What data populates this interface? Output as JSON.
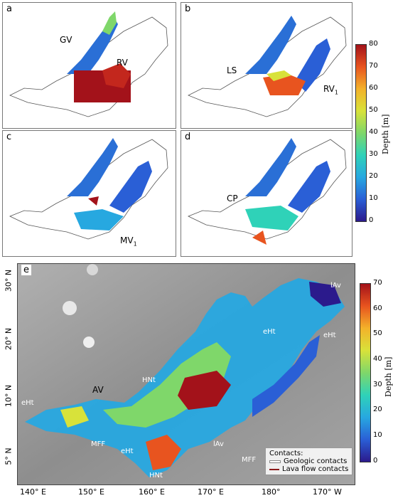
{
  "panels": [
    {
      "id": "a",
      "label": "a",
      "annotations": [
        {
          "text": "GV"
        },
        {
          "text": "RV"
        }
      ]
    },
    {
      "id": "b",
      "label": "b",
      "annotations": [
        {
          "text": "LS"
        },
        {
          "text": "RV",
          "sub": "1"
        }
      ]
    },
    {
      "id": "c",
      "label": "c",
      "annotations": [
        {
          "text": "MV",
          "sub": "1"
        }
      ]
    },
    {
      "id": "d",
      "label": "d",
      "annotations": [
        {
          "text": "CP"
        }
      ]
    }
  ],
  "colorbar_top": {
    "title": "Depth [m]",
    "ticks": [
      "80",
      "70",
      "60",
      "50",
      "40",
      "30",
      "20",
      "10",
      "0"
    ],
    "range": [
      0,
      80
    ]
  },
  "map_e": {
    "label": "e",
    "units": [
      "lAv",
      "eHt",
      "eHt",
      "HNt",
      "AV",
      "eHt",
      "MFF",
      "eHt",
      "lAv",
      "MFF",
      "HNt"
    ],
    "lat_labels": [
      "30° N",
      "20° N",
      "10° N",
      "5° N"
    ],
    "lon_labels": [
      "140° E",
      "150° E",
      "160° E",
      "170° E",
      "180°",
      "170° W"
    ],
    "legend": {
      "title": "Contacts:",
      "items": [
        {
          "label": "Geologic contacts",
          "color": "#ffffff"
        },
        {
          "label": "Lava flow contacts",
          "color": "#8b1a1a"
        }
      ]
    }
  },
  "colorbar_bottom": {
    "title": "Depth [m]",
    "ticks": [
      "70",
      "60",
      "50",
      "40",
      "30",
      "20",
      "10",
      "0"
    ],
    "range": [
      0,
      70
    ]
  },
  "colors": {
    "depth_ramp": [
      "#2b1a8c",
      "#2a5fd6",
      "#27a8e0",
      "#2fd2b8",
      "#7fd76a",
      "#d8e23a",
      "#f3b22a",
      "#e8541f",
      "#a3121a"
    ],
    "shaded_relief": "#9a9a9a"
  }
}
